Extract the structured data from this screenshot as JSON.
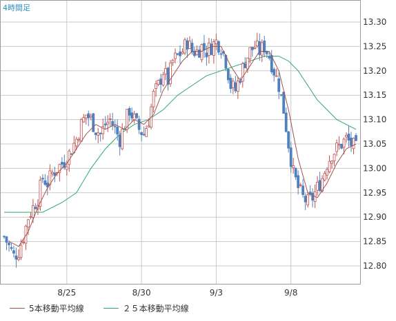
{
  "chart_data": {
    "type": "candlestick",
    "title": "4時間足",
    "ylim": [
      12.77,
      13.33
    ],
    "y_ticks": [
      "13.30",
      "13.25",
      "13.20",
      "13.15",
      "13.10",
      "13.05",
      "13.00",
      "12.95",
      "12.90",
      "12.85",
      "12.80"
    ],
    "x_ticks": [
      {
        "label": "8/25",
        "bar": 26
      },
      {
        "label": "8/30",
        "bar": 57
      },
      {
        "label": "9/3",
        "bar": 88
      },
      {
        "label": "9/8",
        "bar": 119
      }
    ],
    "bars": 147,
    "grid": true,
    "colors": {
      "up": "#c0504d",
      "down": "#4f81bd",
      "ma5": "#a0524f",
      "ma25": "#2aa873",
      "grid": "#c8c8c8",
      "tick_text": "#333333",
      "title": "#2a8fc0"
    },
    "close_path": [
      [
        0,
        12.86
      ],
      [
        2,
        12.84
      ],
      [
        4,
        12.82
      ],
      [
        6,
        12.83
      ],
      [
        8,
        12.86
      ],
      [
        10,
        12.9
      ],
      [
        12,
        12.92
      ],
      [
        14,
        12.94
      ],
      [
        16,
        12.98
      ],
      [
        18,
        12.97
      ],
      [
        20,
        12.99
      ],
      [
        22,
        13.0
      ],
      [
        24,
        13.01
      ],
      [
        26,
        13.02
      ],
      [
        28,
        13.04
      ],
      [
        30,
        13.06
      ],
      [
        32,
        13.09
      ],
      [
        34,
        13.11
      ],
      [
        36,
        13.1
      ],
      [
        38,
        13.08
      ],
      [
        40,
        13.07
      ],
      [
        42,
        13.09
      ],
      [
        44,
        13.1
      ],
      [
        46,
        13.08
      ],
      [
        48,
        13.06
      ],
      [
        50,
        13.09
      ],
      [
        52,
        13.12
      ],
      [
        54,
        13.1
      ],
      [
        56,
        13.08
      ],
      [
        58,
        13.07
      ],
      [
        60,
        13.1
      ],
      [
        62,
        13.15
      ],
      [
        64,
        13.17
      ],
      [
        66,
        13.2
      ],
      [
        68,
        13.18
      ],
      [
        70,
        13.22
      ],
      [
        72,
        13.23
      ],
      [
        74,
        13.24
      ],
      [
        76,
        13.26
      ],
      [
        78,
        13.24
      ],
      [
        80,
        13.24
      ],
      [
        82,
        13.25
      ],
      [
        84,
        13.24
      ],
      [
        86,
        13.25
      ],
      [
        88,
        13.26
      ],
      [
        90,
        13.25
      ],
      [
        92,
        13.22
      ],
      [
        94,
        13.17
      ],
      [
        96,
        13.16
      ],
      [
        98,
        13.19
      ],
      [
        100,
        13.22
      ],
      [
        102,
        13.24
      ],
      [
        104,
        13.25
      ],
      [
        106,
        13.24
      ],
      [
        108,
        13.25
      ],
      [
        110,
        13.23
      ],
      [
        112,
        13.2
      ],
      [
        114,
        13.17
      ],
      [
        116,
        13.12
      ],
      [
        118,
        13.05
      ],
      [
        120,
        12.99
      ],
      [
        122,
        12.96
      ],
      [
        124,
        12.94
      ],
      [
        126,
        12.93
      ],
      [
        128,
        12.94
      ],
      [
        130,
        12.96
      ],
      [
        132,
        12.98
      ],
      [
        134,
        13.01
      ],
      [
        136,
        13.03
      ],
      [
        138,
        13.04
      ],
      [
        140,
        13.05
      ],
      [
        142,
        13.06
      ],
      [
        144,
        13.05
      ],
      [
        146,
        13.04
      ]
    ],
    "series": [
      {
        "name": "5本移動平均線",
        "points": [
          [
            2,
            12.85
          ],
          [
            6,
            12.84
          ],
          [
            10,
            12.87
          ],
          [
            14,
            12.92
          ],
          [
            18,
            12.96
          ],
          [
            22,
            12.99
          ],
          [
            26,
            13.01
          ],
          [
            30,
            13.04
          ],
          [
            34,
            13.07
          ],
          [
            38,
            13.09
          ],
          [
            42,
            13.08
          ],
          [
            46,
            13.09
          ],
          [
            50,
            13.08
          ],
          [
            54,
            13.1
          ],
          [
            58,
            13.09
          ],
          [
            62,
            13.11
          ],
          [
            66,
            13.16
          ],
          [
            70,
            13.19
          ],
          [
            74,
            13.22
          ],
          [
            78,
            13.24
          ],
          [
            82,
            13.24
          ],
          [
            86,
            13.25
          ],
          [
            90,
            13.25
          ],
          [
            94,
            13.21
          ],
          [
            98,
            13.18
          ],
          [
            102,
            13.21
          ],
          [
            106,
            13.24
          ],
          [
            110,
            13.24
          ],
          [
            114,
            13.2
          ],
          [
            118,
            13.12
          ],
          [
            122,
            13.02
          ],
          [
            126,
            12.95
          ],
          [
            130,
            12.94
          ],
          [
            134,
            12.97
          ],
          [
            138,
            13.01
          ],
          [
            142,
            13.04
          ],
          [
            146,
            13.05
          ]
        ]
      },
      {
        "name": "２５本移動平均線",
        "points": [
          [
            0,
            12.91
          ],
          [
            8,
            12.91
          ],
          [
            16,
            12.91
          ],
          [
            24,
            12.93
          ],
          [
            30,
            12.95
          ],
          [
            36,
            13.0
          ],
          [
            42,
            13.04
          ],
          [
            48,
            13.07
          ],
          [
            54,
            13.09
          ],
          [
            60,
            13.1
          ],
          [
            66,
            13.12
          ],
          [
            72,
            13.15
          ],
          [
            78,
            13.17
          ],
          [
            84,
            13.19
          ],
          [
            90,
            13.2
          ],
          [
            96,
            13.21
          ],
          [
            102,
            13.22
          ],
          [
            108,
            13.23
          ],
          [
            114,
            13.23
          ],
          [
            118,
            13.22
          ],
          [
            122,
            13.2
          ],
          [
            126,
            13.17
          ],
          [
            130,
            13.14
          ],
          [
            134,
            13.12
          ],
          [
            138,
            13.1
          ],
          [
            142,
            13.09
          ],
          [
            146,
            13.08
          ]
        ]
      }
    ]
  }
}
